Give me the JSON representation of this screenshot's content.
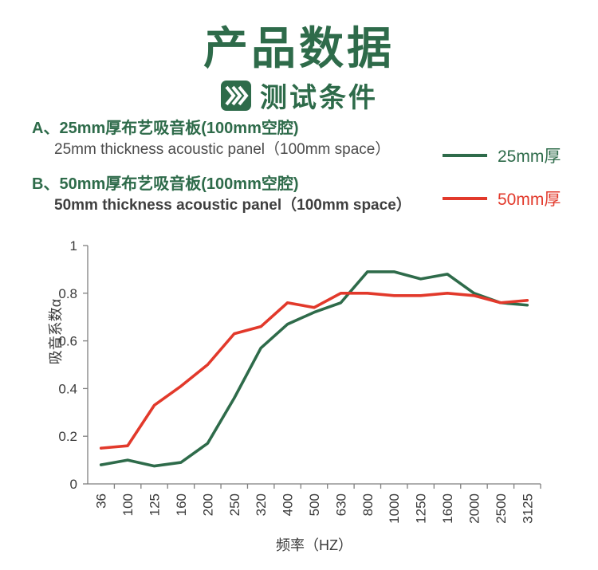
{
  "header": {
    "title": "产品数据",
    "subtitle": "测试条件",
    "accent_color": "#2E6B4A"
  },
  "specs": [
    {
      "cn": "A、25mm厚布艺吸音板(100mm空腔)",
      "en": "25mm thickness acoustic panel（100mm space）"
    },
    {
      "cn": "B、50mm厚布艺吸音板(100mm空腔)",
      "en": "50mm thickness acoustic panel（100mm space）"
    }
  ],
  "legend": [
    {
      "label": "25mm厚",
      "color": "#2E6B4A"
    },
    {
      "label": "50mm厚",
      "color": "#E2392B"
    }
  ],
  "chart_data": {
    "type": "line",
    "title": "",
    "xlabel": "频率（HZ）",
    "ylabel": "吸音系数α",
    "categories": [
      "36",
      "100",
      "125",
      "160",
      "200",
      "250",
      "320",
      "400",
      "500",
      "630",
      "800",
      "1000",
      "1250",
      "1600",
      "2000",
      "2500",
      "3125"
    ],
    "series": [
      {
        "name": "25mm厚",
        "color": "#2E6B4A",
        "values": [
          0.08,
          0.1,
          0.075,
          0.09,
          0.17,
          0.36,
          0.57,
          0.67,
          0.72,
          0.76,
          0.89,
          0.89,
          0.86,
          0.88,
          0.8,
          0.76,
          0.75
        ]
      },
      {
        "name": "50mm厚",
        "color": "#E2392B",
        "values": [
          0.15,
          0.16,
          0.33,
          0.41,
          0.5,
          0.63,
          0.66,
          0.76,
          0.74,
          0.8,
          0.8,
          0.79,
          0.79,
          0.8,
          0.79,
          0.76,
          0.77
        ]
      }
    ],
    "ylim": [
      0,
      1
    ],
    "yticks": [
      "0",
      "0.2",
      "0.4",
      "0.6",
      "0.8",
      "1"
    ],
    "grid": false,
    "legend_position": "upper-right-outside"
  }
}
